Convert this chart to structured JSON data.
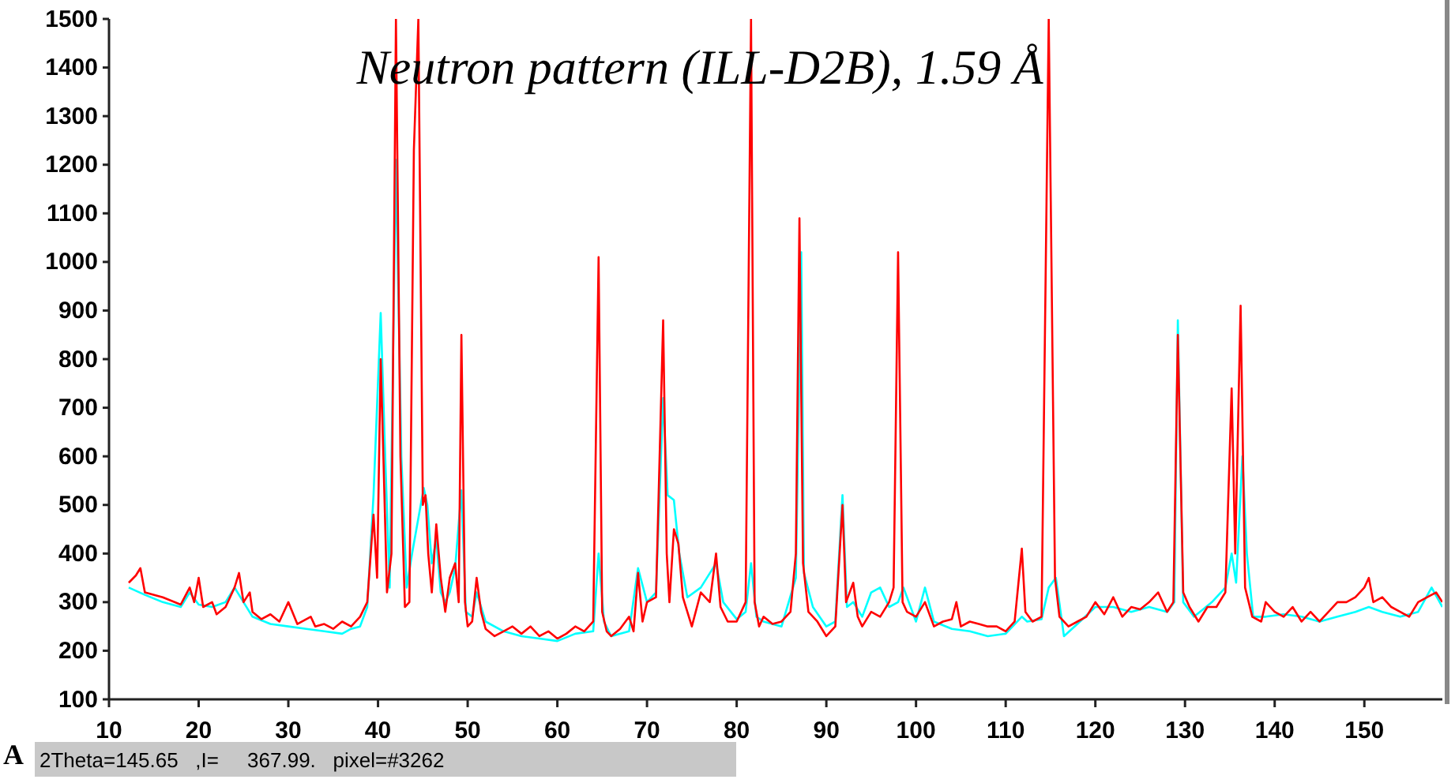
{
  "chart_data": {
    "type": "line",
    "title": "Neutron pattern (ILL-D2B), 1.59 Å",
    "annotations": [
      "2Theta=145.65   ,I=     367.99.   pixel=#3262",
      "A"
    ],
    "xlim": [
      10,
      158.7
    ],
    "xticks": [
      10,
      20,
      30,
      40,
      50,
      60,
      70,
      80,
      90,
      100,
      110,
      120,
      130,
      140,
      150
    ],
    "ylim": [
      100,
      1500
    ],
    "yticks": [
      100,
      200,
      300,
      400,
      500,
      600,
      700,
      800,
      900,
      1000,
      1100,
      1200,
      1300,
      1400,
      1500
    ],
    "grid": false,
    "marker": "none",
    "line_style": "solid",
    "series": [
      {
        "color": "#00ffff",
        "x": [
          12.2,
          14,
          16,
          18,
          19,
          20,
          21.5,
          23,
          24,
          25,
          26,
          28,
          30,
          32,
          34,
          36,
          37,
          38,
          38.8,
          39.5,
          40.3,
          40.8,
          41.3,
          42,
          42.6,
          43.2,
          43.8,
          44.5,
          45.1,
          45.5,
          46,
          46.5,
          47,
          47.5,
          48,
          48.6,
          49.3,
          49.8,
          50.5,
          51,
          52,
          54,
          56,
          58,
          60,
          62,
          64,
          64.6,
          65.2,
          66,
          68,
          69,
          70,
          71,
          71.8,
          72.3,
          73,
          73.6,
          74.5,
          76,
          77.7,
          78.5,
          80,
          81,
          81.6,
          82.2,
          83,
          85,
          86.6,
          87.2,
          87.5,
          88.5,
          90,
          91,
          91.8,
          92.3,
          93,
          94,
          95,
          96,
          97,
          98,
          98.6,
          100,
          101,
          102,
          104,
          106,
          108,
          110,
          111.8,
          112.4,
          114,
          114.8,
          115.6,
          116.5,
          118,
          120,
          122,
          124,
          126,
          128,
          128.8,
          129.2,
          129.8,
          131,
          133,
          134.5,
          135.2,
          135.7,
          136.4,
          136.9,
          137.6,
          139,
          141,
          143,
          145,
          147,
          149,
          150.5,
          152,
          154,
          156,
          157.5,
          158.7
        ],
        "values": [
          330,
          315,
          300,
          290,
          320,
          295,
          290,
          300,
          330,
          300,
          270,
          255,
          250,
          245,
          240,
          235,
          245,
          250,
          290,
          520,
          895,
          600,
          330,
          1210,
          600,
          330,
          400,
          null,
          535,
          500,
          380,
          430,
          320,
          300,
          320,
          370,
          530,
          280,
          270,
          320,
          260,
          240,
          230,
          225,
          220,
          235,
          240,
          400,
          260,
          230,
          240,
          370,
          300,
          320,
          720,
          520,
          510,
          400,
          310,
          330,
          380,
          300,
          265,
          280,
          380,
          270,
          260,
          250,
          350,
          1020,
          360,
          290,
          250,
          260,
          520,
          290,
          300,
          270,
          320,
          330,
          290,
          300,
          330,
          260,
          330,
          260,
          245,
          240,
          230,
          235,
          270,
          260,
          265,
          330,
          350,
          230,
          255,
          290,
          290,
          280,
          290,
          280,
          300,
          880,
          300,
          270,
          300,
          330,
          400,
          340,
          600,
          400,
          270,
          270,
          275,
          270,
          260,
          270,
          280,
          290,
          280,
          270,
          280,
          330,
          290
        ]
      },
      {
        "color": "#ff0000",
        "x": [
          12.2,
          13,
          13.5,
          14,
          16,
          18,
          19,
          19.5,
          20,
          20.5,
          21.5,
          22,
          23,
          24,
          24.5,
          25,
          25.7,
          26,
          27,
          28,
          29,
          30,
          31,
          32.5,
          33,
          34,
          35,
          36,
          37,
          38,
          38.8,
          39.5,
          39.9,
          40.3,
          40.6,
          41,
          41.5,
          42,
          42.5,
          43,
          43.5,
          44,
          44.5,
          45,
          45.3,
          45.6,
          46,
          46.5,
          47,
          47.5,
          48,
          48.6,
          49,
          49.3,
          49.7,
          50,
          50.5,
          51,
          51.5,
          52,
          53,
          54,
          55,
          56,
          57,
          58,
          59,
          60,
          61,
          62,
          63,
          64,
          64.6,
          65,
          65.5,
          66,
          67,
          68,
          68.5,
          69,
          69.5,
          70,
          71,
          71.8,
          72.2,
          72.5,
          73,
          73.5,
          74,
          75,
          76,
          77,
          77.7,
          78.2,
          79,
          80,
          81,
          81.6,
          82,
          82.5,
          83,
          84,
          85,
          86,
          86.6,
          87,
          87.4,
          88,
          89,
          90,
          91,
          91.8,
          92.2,
          93,
          93.5,
          94,
          95,
          96,
          97,
          97.5,
          98,
          98.5,
          99,
          100,
          101,
          102,
          103,
          104,
          104.5,
          105,
          106,
          107,
          108,
          109,
          110,
          111,
          111.8,
          112.2,
          113,
          114,
          114.8,
          115.5,
          116,
          117,
          118,
          119,
          120,
          121,
          122,
          123,
          124,
          125,
          126,
          127,
          128,
          128.7,
          129.2,
          129.8,
          130.5,
          131.5,
          132.5,
          133.5,
          134.5,
          135.2,
          135.6,
          136.2,
          136.7,
          137.5,
          138.5,
          139,
          140,
          141,
          142,
          143,
          144,
          145,
          146,
          147,
          148,
          149,
          150,
          150.5,
          151,
          152,
          153,
          154,
          155,
          156,
          157,
          158,
          158.7
        ],
        "values": [
          340,
          355,
          370,
          320,
          310,
          295,
          330,
          300,
          350,
          290,
          300,
          275,
          290,
          330,
          360,
          300,
          320,
          280,
          265,
          275,
          260,
          300,
          255,
          270,
          250,
          255,
          245,
          260,
          250,
          270,
          300,
          480,
          350,
          800,
          600,
          320,
          400,
          1500,
          600,
          290,
          300,
          1230,
          1500,
          500,
          520,
          400,
          320,
          460,
          350,
          280,
          350,
          380,
          300,
          850,
          300,
          250,
          260,
          350,
          280,
          245,
          230,
          240,
          250,
          235,
          250,
          230,
          240,
          225,
          235,
          250,
          240,
          260,
          1010,
          280,
          240,
          230,
          245,
          270,
          240,
          360,
          260,
          300,
          310,
          880,
          400,
          300,
          450,
          420,
          310,
          250,
          320,
          300,
          400,
          290,
          260,
          260,
          300,
          1500,
          300,
          250,
          270,
          255,
          260,
          280,
          400,
          1090,
          380,
          280,
          260,
          230,
          250,
          500,
          300,
          340,
          270,
          250,
          280,
          270,
          300,
          330,
          1020,
          300,
          280,
          270,
          300,
          250,
          260,
          265,
          300,
          250,
          260,
          255,
          250,
          250,
          240,
          260,
          410,
          280,
          260,
          270,
          1500,
          350,
          270,
          250,
          260,
          270,
          300,
          275,
          310,
          270,
          290,
          285,
          300,
          320,
          280,
          300,
          850,
          320,
          290,
          260,
          290,
          290,
          320,
          740,
          400,
          910,
          330,
          270,
          260,
          300,
          280,
          270,
          290,
          260,
          280,
          260,
          280,
          300,
          300,
          310,
          330,
          350,
          300,
          310,
          290,
          280,
          270,
          300,
          310,
          320,
          300
        ]
      }
    ]
  }
}
